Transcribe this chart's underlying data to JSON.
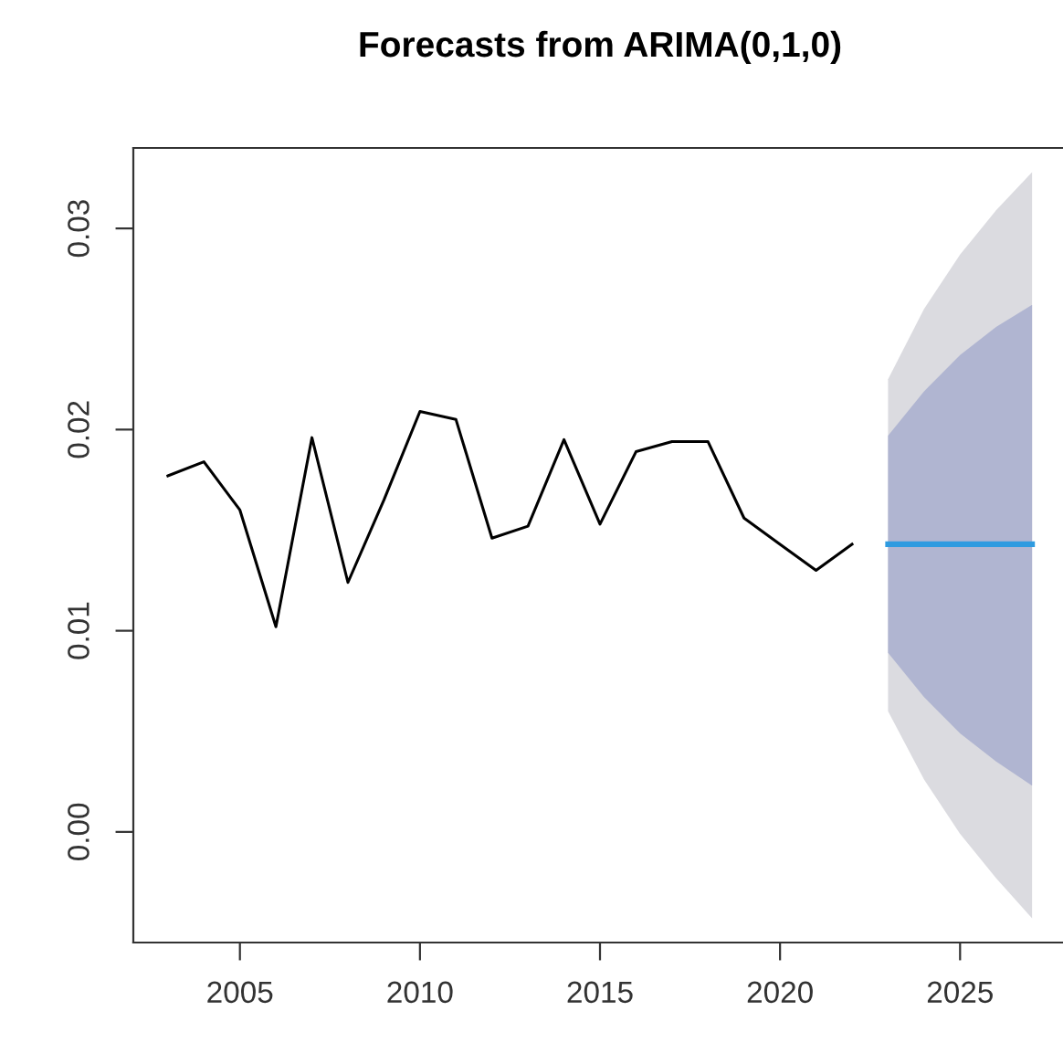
{
  "chart_data": {
    "type": "line",
    "title": "Forecasts from ARIMA(0,1,0)",
    "xlim": [
      2002.04,
      2027.96
    ],
    "xticks": [
      2005,
      2010,
      2015,
      2020,
      2025
    ],
    "ylim": [
      -0.0055,
      0.034
    ],
    "yticks": [
      {
        "value": 0,
        "label": "0.00"
      },
      {
        "value": 0.01,
        "label": "0.01"
      },
      {
        "value": 0.02,
        "label": "0.02"
      },
      {
        "value": 0.03,
        "label": "0.03"
      }
    ],
    "grid": false,
    "marker": "none",
    "line_style": "solid",
    "series": [
      {
        "color": "#dbdbe0",
        "x": [
          2023,
          2024,
          2025,
          2026,
          2027
        ],
        "values": [
          null,
          null,
          null,
          null,
          null
        ],
        "upper": [
          0.0225,
          0.026,
          0.0287,
          0.0309,
          0.0328
        ],
        "lower": [
          0.006,
          0.0026,
          -0.0001,
          -0.0023,
          -0.0043
        ]
      },
      {
        "color": "#b0b5d1",
        "x": [
          2023,
          2024,
          2025,
          2026,
          2027
        ],
        "values": [
          null,
          null,
          null,
          null,
          null
        ],
        "upper": [
          0.0197,
          0.0219,
          0.0237,
          0.0251,
          0.0262
        ],
        "lower": [
          0.0089,
          0.0067,
          0.0049,
          0.0035,
          0.0023
        ]
      },
      {
        "color": "#000000",
        "x": [
          2003,
          2004,
          2005,
          2006,
          2007,
          2008,
          2009,
          2010,
          2011,
          2012,
          2013,
          2014,
          2015,
          2016,
          2017,
          2018,
          2019,
          2020,
          2021,
          2022
        ],
        "values": [
          0.0177,
          0.0184,
          0.016,
          0.0102,
          0.0196,
          0.0124,
          0.0165,
          0.0209,
          0.0205,
          0.0146,
          0.0152,
          0.0195,
          0.0153,
          0.0189,
          0.0194,
          0.0194,
          0.0156,
          0.0143,
          0.013,
          0.0143
        ]
      },
      {
        "color": "#2f9be0",
        "x": [
          2023,
          2024,
          2025,
          2026,
          2027
        ],
        "values": [
          0.0143,
          0.0143,
          0.0143,
          0.0143,
          0.0143
        ]
      }
    ]
  }
}
